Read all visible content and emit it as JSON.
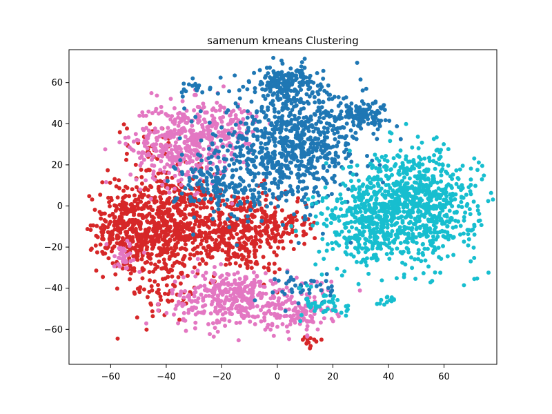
{
  "chart_data": {
    "type": "scatter",
    "title": "samenum kmeans Clustering",
    "xlabel": "",
    "ylabel": "",
    "xlim": [
      -75,
      79
    ],
    "ylim": [
      -77,
      76
    ],
    "x_ticks": [
      -60,
      -40,
      -20,
      0,
      20,
      40,
      60
    ],
    "y_ticks": [
      -60,
      -40,
      -20,
      0,
      20,
      40,
      60
    ],
    "x_tick_labels": [
      "−60",
      "−40",
      "−20",
      "0",
      "20",
      "40",
      "60"
    ],
    "y_tick_labels": [
      "−60",
      "−40",
      "−20",
      "0",
      "20",
      "40",
      "60"
    ],
    "grid": false,
    "legend": "none",
    "colors": [
      "#d62728",
      "#e377c2",
      "#1f77b4",
      "#17becf"
    ],
    "series": [
      {
        "color": "#d62728",
        "regions": [
          {
            "center": [
              -42,
              -10
            ],
            "spread": [
              10,
              13
            ],
            "points": 650
          },
          {
            "center": [
              -15,
              -12
            ],
            "spread": [
              11,
              10
            ],
            "points": 420
          },
          {
            "center": [
              -55,
              -10
            ],
            "spread": [
              5,
              9
            ],
            "points": 160
          },
          {
            "center": [
              -45,
              30
            ],
            "spread": [
              5,
              6
            ],
            "points": 40
          },
          {
            "center": [
              -40,
              -42
            ],
            "spread": [
              6,
              5
            ],
            "points": 45
          },
          {
            "center": [
              12,
              -67
            ],
            "spread": [
              2,
              1.5
            ],
            "points": 12
          },
          {
            "center": [
              2,
              -8
            ],
            "spread": [
              5,
              6
            ],
            "points": 60
          }
        ]
      },
      {
        "color": "#e377c2",
        "regions": [
          {
            "center": [
              -35,
              30
            ],
            "spread": [
              9,
              10
            ],
            "points": 380
          },
          {
            "center": [
              -20,
              38
            ],
            "spread": [
              7,
              7
            ],
            "points": 140
          },
          {
            "center": [
              -15,
              -45
            ],
            "spread": [
              12,
              7
            ],
            "points": 380
          },
          {
            "center": [
              8,
              -52
            ],
            "spread": [
              6,
              5
            ],
            "points": 100
          },
          {
            "center": [
              -55,
              -25
            ],
            "spread": [
              3,
              4
            ],
            "points": 35
          }
        ]
      },
      {
        "color": "#1f77b4",
        "regions": [
          {
            "center": [
              5,
              30
            ],
            "spread": [
              13,
              14
            ],
            "points": 780
          },
          {
            "center": [
              3,
              60
            ],
            "spread": [
              5,
              4
            ],
            "points": 150
          },
          {
            "center": [
              30,
              45
            ],
            "spread": [
              5,
              3
            ],
            "points": 110
          },
          {
            "center": [
              -20,
              10
            ],
            "spread": [
              8,
              9
            ],
            "points": 160
          },
          {
            "center": [
              10,
              -40
            ],
            "spread": [
              5,
              4
            ],
            "points": 40
          },
          {
            "center": [
              -30,
              58
            ],
            "spread": [
              3,
              1.5
            ],
            "points": 18
          }
        ]
      },
      {
        "color": "#17becf",
        "regions": [
          {
            "center": [
              48,
              0
            ],
            "spread": [
              12,
              13
            ],
            "points": 900
          },
          {
            "center": [
              30,
              -10
            ],
            "spread": [
              8,
              10
            ],
            "points": 200
          },
          {
            "center": [
              18,
              -48
            ],
            "spread": [
              4,
              4
            ],
            "points": 45
          },
          {
            "center": [
              40,
              -45
            ],
            "spread": [
              2,
              1.5
            ],
            "points": 12
          }
        ]
      }
    ]
  }
}
